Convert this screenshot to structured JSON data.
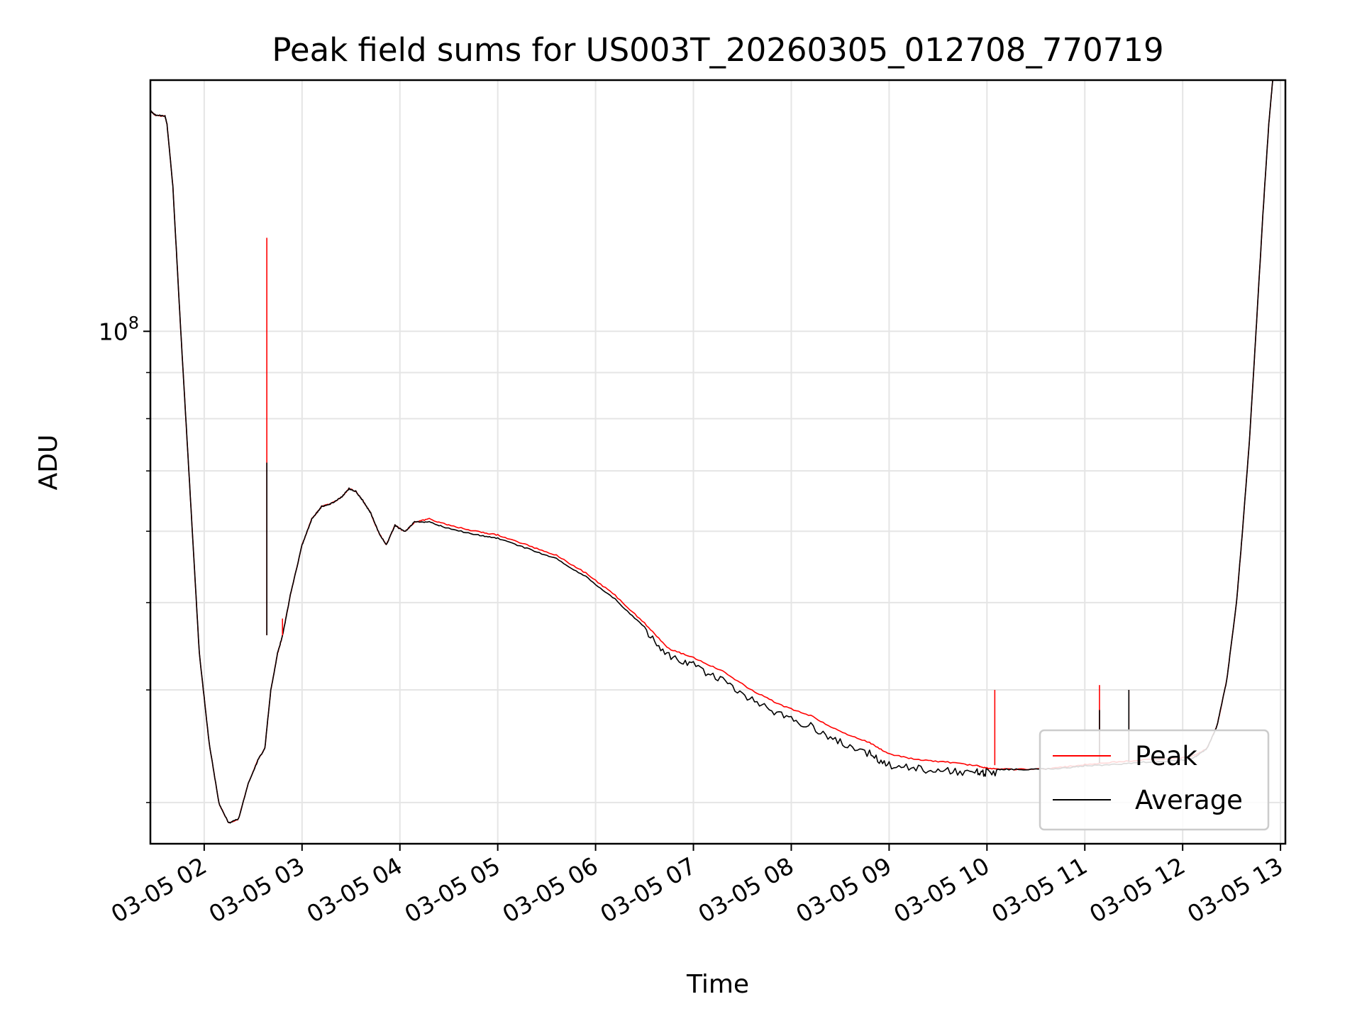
{
  "chart_data": {
    "type": "line",
    "title": "Peak field sums for US003T_20260305_012708_770719",
    "xlabel": "Time",
    "ylabel": "ADU",
    "yscale": "log",
    "ylim": [
      27000000,
      190000000
    ],
    "xlim_hours": [
      1.45,
      13.05
    ],
    "x_tick_labels": [
      "03-05 02",
      "03-05 03",
      "03-05 04",
      "03-05 05",
      "03-05 06",
      "03-05 07",
      "03-05 08",
      "03-05 09",
      "03-05 10",
      "03-05 11",
      "03-05 12",
      "03-05 13"
    ],
    "x_tick_hours": [
      2,
      3,
      4,
      5,
      6,
      7,
      8,
      9,
      10,
      11,
      12,
      13
    ],
    "y_tick_labels": [
      {
        "base": "10",
        "exp": "8"
      }
    ],
    "y_major_ticks": [
      100000000
    ],
    "y_minor_ticks": [
      30000000,
      40000000,
      50000000,
      60000000,
      70000000,
      80000000,
      90000000,
      200000000
    ],
    "grid": true,
    "legend_position": "lower-right",
    "series": [
      {
        "name": "Peak",
        "color": "#ff0000",
        "points": [
          [
            1.45,
            176000000
          ],
          [
            1.5,
            174000000
          ],
          [
            1.6,
            173500000
          ],
          [
            1.62,
            170000000
          ],
          [
            1.68,
            145000000
          ],
          [
            1.75,
            105000000
          ],
          [
            1.85,
            68000000
          ],
          [
            1.95,
            44000000
          ],
          [
            2.05,
            35000000
          ],
          [
            2.15,
            30000000
          ],
          [
            2.25,
            28500000
          ],
          [
            2.35,
            28800000
          ],
          [
            2.45,
            31500000
          ],
          [
            2.55,
            33500000
          ],
          [
            2.62,
            34500000
          ],
          [
            2.68,
            40000000
          ],
          [
            2.75,
            44000000
          ],
          [
            2.8,
            46000000
          ],
          [
            2.88,
            51000000
          ],
          [
            3.0,
            58000000
          ],
          [
            3.1,
            62000000
          ],
          [
            3.2,
            64000000
          ],
          [
            3.3,
            64500000
          ],
          [
            3.4,
            65500000
          ],
          [
            3.48,
            67000000
          ],
          [
            3.55,
            66500000
          ],
          [
            3.62,
            65000000
          ],
          [
            3.7,
            63000000
          ],
          [
            3.78,
            60000000
          ],
          [
            3.86,
            58000000
          ],
          [
            3.95,
            61000000
          ],
          [
            4.05,
            60000000
          ],
          [
            4.15,
            61500000
          ],
          [
            4.3,
            62000000
          ],
          [
            4.5,
            61000000
          ],
          [
            4.8,
            60000000
          ],
          [
            5.0,
            59500000
          ],
          [
            5.3,
            58000000
          ],
          [
            5.6,
            56500000
          ],
          [
            5.9,
            54000000
          ],
          [
            6.2,
            51000000
          ],
          [
            6.5,
            47500000
          ],
          [
            6.75,
            44500000
          ],
          [
            7.0,
            43500000
          ],
          [
            7.3,
            42000000
          ],
          [
            7.6,
            40000000
          ],
          [
            7.9,
            38500000
          ],
          [
            8.2,
            37500000
          ],
          [
            8.5,
            36000000
          ],
          [
            8.8,
            35000000
          ],
          [
            9.0,
            34000000
          ],
          [
            9.3,
            33500000
          ],
          [
            9.6,
            33300000
          ],
          [
            9.9,
            33000000
          ],
          [
            10.0,
            32800000
          ],
          [
            10.2,
            32700000
          ],
          [
            10.5,
            32700000
          ],
          [
            10.8,
            32900000
          ],
          [
            11.0,
            33100000
          ],
          [
            11.3,
            33300000
          ],
          [
            11.6,
            33500000
          ],
          [
            11.9,
            33600000
          ],
          [
            12.1,
            33800000
          ],
          [
            12.25,
            34500000
          ],
          [
            12.35,
            36500000
          ],
          [
            12.45,
            41000000
          ],
          [
            12.55,
            50000000
          ],
          [
            12.6,
            58000000
          ],
          [
            12.68,
            75000000
          ],
          [
            12.75,
            100000000
          ],
          [
            12.82,
            135000000
          ],
          [
            12.88,
            170000000
          ],
          [
            12.92,
            190000000
          ]
        ]
      },
      {
        "name": "Average",
        "color": "#000000",
        "points": [
          [
            1.45,
            176000000
          ],
          [
            1.5,
            174000000
          ],
          [
            1.6,
            173500000
          ],
          [
            1.62,
            170000000
          ],
          [
            1.68,
            145000000
          ],
          [
            1.75,
            105000000
          ],
          [
            1.85,
            68000000
          ],
          [
            1.95,
            44000000
          ],
          [
            2.05,
            35000000
          ],
          [
            2.15,
            30000000
          ],
          [
            2.25,
            28500000
          ],
          [
            2.35,
            28800000
          ],
          [
            2.45,
            31500000
          ],
          [
            2.55,
            33500000
          ],
          [
            2.62,
            34500000
          ],
          [
            2.68,
            40000000
          ],
          [
            2.75,
            44000000
          ],
          [
            2.8,
            46000000
          ],
          [
            2.88,
            51000000
          ],
          [
            3.0,
            58000000
          ],
          [
            3.1,
            62000000
          ],
          [
            3.2,
            64000000
          ],
          [
            3.3,
            64500000
          ],
          [
            3.4,
            65500000
          ],
          [
            3.48,
            67000000
          ],
          [
            3.55,
            66500000
          ],
          [
            3.62,
            65000000
          ],
          [
            3.7,
            63000000
          ],
          [
            3.78,
            60000000
          ],
          [
            3.86,
            58000000
          ],
          [
            3.95,
            61000000
          ],
          [
            4.05,
            60000000
          ],
          [
            4.15,
            61500000
          ],
          [
            4.3,
            61500000
          ],
          [
            4.5,
            60500000
          ],
          [
            4.8,
            59500000
          ],
          [
            5.0,
            59000000
          ],
          [
            5.3,
            57500000
          ],
          [
            5.6,
            56000000
          ],
          [
            5.9,
            53500000
          ],
          [
            6.2,
            50500000
          ],
          [
            6.5,
            47000000
          ],
          [
            6.75,
            44000000
          ],
          [
            7.0,
            43000000
          ],
          [
            7.3,
            41300000
          ],
          [
            7.6,
            39300000
          ],
          [
            7.9,
            37800000
          ],
          [
            8.2,
            36800000
          ],
          [
            8.5,
            35300000
          ],
          [
            8.8,
            34300000
          ],
          [
            9.0,
            33300000
          ],
          [
            9.3,
            33000000
          ],
          [
            9.6,
            32800000
          ],
          [
            9.9,
            32700000
          ],
          [
            10.0,
            32700000
          ],
          [
            10.2,
            32700000
          ],
          [
            10.5,
            32700000
          ],
          [
            10.8,
            32800000
          ],
          [
            11.0,
            33000000
          ],
          [
            11.3,
            33100000
          ],
          [
            11.6,
            33300000
          ],
          [
            11.9,
            33400000
          ],
          [
            12.1,
            33600000
          ],
          [
            12.25,
            34500000
          ],
          [
            12.35,
            36500000
          ],
          [
            12.45,
            41000000
          ],
          [
            12.55,
            50000000
          ],
          [
            12.6,
            58000000
          ],
          [
            12.68,
            75000000
          ],
          [
            12.75,
            100000000
          ],
          [
            12.82,
            135000000
          ],
          [
            12.88,
            170000000
          ],
          [
            12.92,
            190000000
          ]
        ]
      }
    ],
    "spikes": [
      {
        "series": "Peak",
        "hour": 2.64,
        "from": 46000000,
        "to": 127000000
      },
      {
        "series": "Average",
        "hour": 2.64,
        "from": 46000000,
        "to": 71500000
      },
      {
        "series": "Peak",
        "hour": 2.8,
        "from": 46000000,
        "to": 48000000
      },
      {
        "series": "Peak",
        "hour": 10.08,
        "from": 33000000,
        "to": 40000000
      },
      {
        "series": "Peak",
        "hour": 11.15,
        "from": 33200000,
        "to": 40500000
      },
      {
        "series": "Average",
        "hour": 11.15,
        "from": 33200000,
        "to": 38000000
      },
      {
        "series": "Peak",
        "hour": 11.45,
        "from": 33300000,
        "to": 40000000
      },
      {
        "series": "Average",
        "hour": 11.45,
        "from": 33300000,
        "to": 40000000
      }
    ]
  }
}
